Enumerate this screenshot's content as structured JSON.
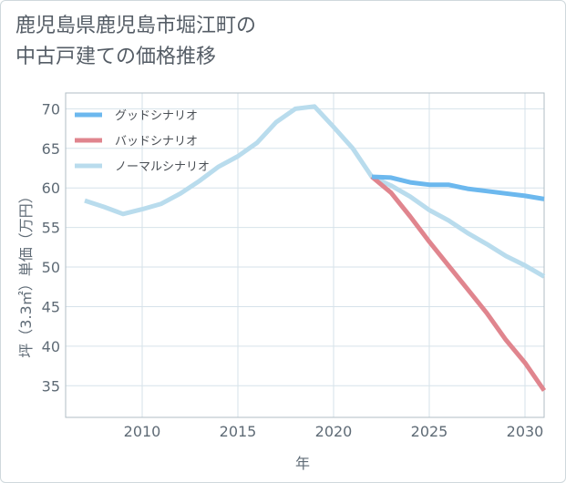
{
  "title": "鹿児島県鹿児島市堀江町の\n中古戸建ての価格推移",
  "chart_data": {
    "type": "line",
    "xlabel": "年",
    "ylabel": "坪（3.3㎡）単価（万円）",
    "xlim": [
      2006,
      2031
    ],
    "ylim": [
      31,
      72
    ],
    "xticks": [
      2010,
      2015,
      2020,
      2025,
      2030
    ],
    "yticks": [
      35,
      40,
      45,
      50,
      55,
      60,
      65,
      70
    ],
    "grid": true,
    "legend_position": "top-left",
    "series": [
      {
        "name": "グッドシナリオ",
        "color": "#6cb8ee",
        "points": [
          [
            2022,
            61.4
          ],
          [
            2023,
            61.3
          ],
          [
            2024,
            60.7
          ],
          [
            2025,
            60.4
          ],
          [
            2026,
            60.4
          ],
          [
            2027,
            59.9
          ],
          [
            2028,
            59.6
          ],
          [
            2029,
            59.3
          ],
          [
            2030,
            59.0
          ],
          [
            2031,
            58.6
          ]
        ]
      },
      {
        "name": "バッドシナリオ",
        "color": "#e0858e",
        "points": [
          [
            2022,
            61.4
          ],
          [
            2023,
            59.4
          ],
          [
            2024,
            56.4
          ],
          [
            2025,
            53.2
          ],
          [
            2026,
            50.2
          ],
          [
            2027,
            47.2
          ],
          [
            2028,
            44.2
          ],
          [
            2029,
            40.8
          ],
          [
            2030,
            37.9
          ],
          [
            2031,
            34.4
          ]
        ]
      },
      {
        "name": "ノーマルシナリオ",
        "color": "#b9dced",
        "points": [
          [
            2007,
            58.4
          ],
          [
            2008,
            57.6
          ],
          [
            2009,
            56.7
          ],
          [
            2010,
            57.3
          ],
          [
            2011,
            58.0
          ],
          [
            2012,
            59.3
          ],
          [
            2013,
            60.9
          ],
          [
            2014,
            62.7
          ],
          [
            2015,
            64.0
          ],
          [
            2016,
            65.7
          ],
          [
            2017,
            68.3
          ],
          [
            2018,
            70.0
          ],
          [
            2019,
            70.3
          ],
          [
            2020,
            67.7
          ],
          [
            2021,
            65.0
          ],
          [
            2022,
            61.4
          ],
          [
            2023,
            60.3
          ],
          [
            2024,
            58.9
          ],
          [
            2025,
            57.2
          ],
          [
            2026,
            55.9
          ],
          [
            2027,
            54.3
          ],
          [
            2028,
            52.9
          ],
          [
            2029,
            51.4
          ],
          [
            2030,
            50.2
          ],
          [
            2031,
            48.8
          ]
        ]
      }
    ]
  }
}
